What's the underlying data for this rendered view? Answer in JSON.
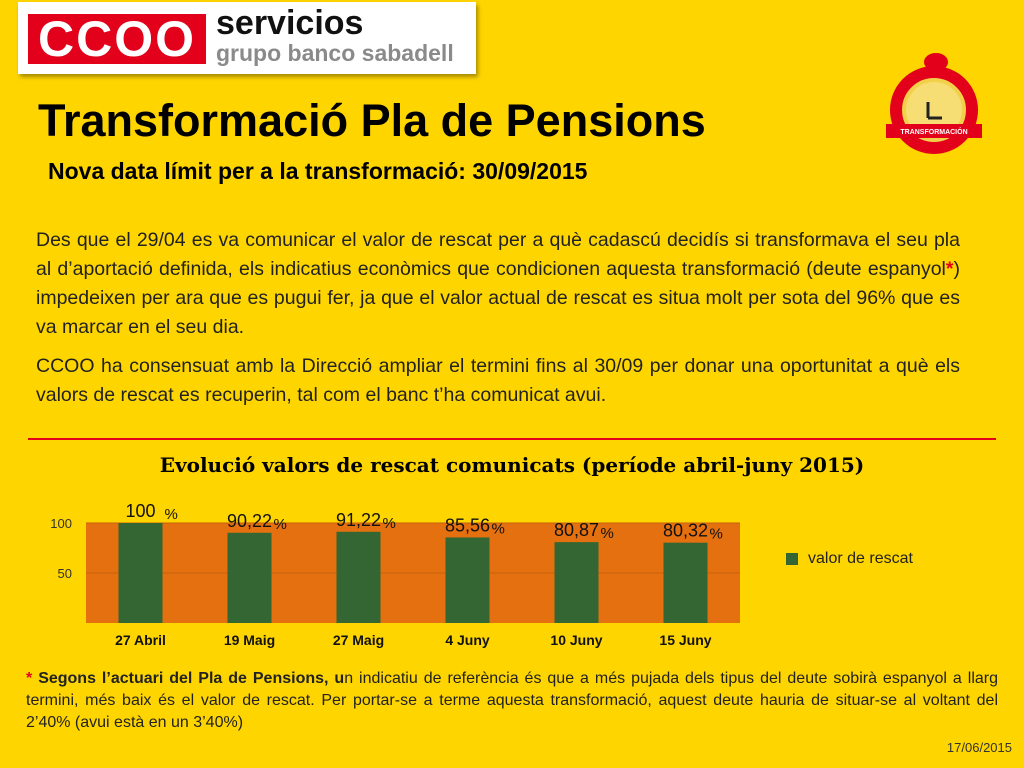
{
  "logo": {
    "mark": "CCOO",
    "line1": "servicios",
    "line2": "grupo banco sabadell"
  },
  "badge": {
    "label": "TRANSFORMACIÓN",
    "ring_color": "#E2001A",
    "icon": "clock-piggy-bank-icon"
  },
  "header": {
    "title": "Transformació Pla de Pensions",
    "subtitle": "Nova data límit per a la transformació: 30/09/2015"
  },
  "body": {
    "p1_before": "Des que el 29/04 es va comunicar el valor de rescat per a què cadascú decidís si transformava el seu pla al d’aportació definida, els indicatius econòmics que condicionen aquesta transformació (deute espanyol",
    "p1_star": "*",
    "p1_after": ") impedeixen per ara que es pugui fer, ja que el valor actual de rescat es situa molt per sota del 96% que es va marcar en el seu dia.",
    "p2": "CCOO ha consensuat amb la Direcció ampliar el termini fins al 30/09 per donar una oportunitat a què els valors de rescat es recuperin, tal com el banc t’ha comunicat avui."
  },
  "chart_data": {
    "type": "bar",
    "title": "Evolució valors de rescat comunicats (període abril-juny 2015)",
    "categories": [
      "27 Abril",
      "19 Maig",
      "27 Maig",
      "4 Juny",
      "10 Juny",
      "15 Juny"
    ],
    "series": [
      {
        "name": "valor de rescat",
        "values": [
          100,
          90.22,
          91.22,
          85.56,
          80.87,
          80.32
        ]
      }
    ],
    "value_labels": [
      "100",
      "90,22",
      "91,22",
      "85,56",
      "80,87",
      "80,32"
    ],
    "unit_suffix": "%",
    "yticks": [
      "100",
      "50"
    ],
    "ylim": [
      0,
      100
    ],
    "grid": true,
    "legend_position": "right",
    "colors": {
      "bar": "#336633",
      "plot_bg": "#E5700F",
      "grid": "#C85F0C"
    }
  },
  "footnote": {
    "star": "*",
    "bold": "Segons l’actuari del Pla de Pensions, u",
    "text": "n indicatiu de referència és que a més pujada dels tipus del deute sobirà espanyol a llarg termini, més baix és el valor de rescat. Per portar-se a terme aquesta transformació, aquest deute hauria de situar-se al voltant del 2’40% (avui està en un 3’40%)"
  },
  "date": "17/06/2015"
}
